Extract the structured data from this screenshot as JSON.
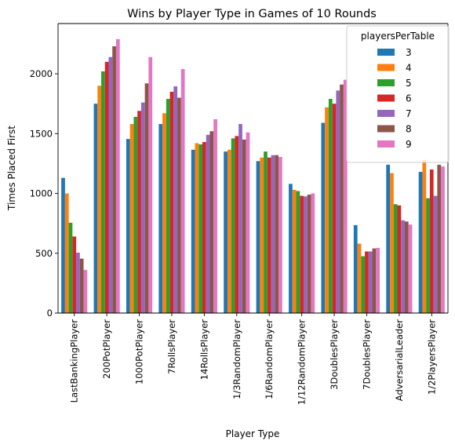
{
  "chart_data": {
    "type": "bar",
    "title": "Wins by Player Type in Games of 10 Rounds",
    "xlabel": "Player Type",
    "ylabel": "Times Placed First",
    "ylim": [
      0,
      2420
    ],
    "yticks": [
      0,
      500,
      1000,
      1500,
      2000
    ],
    "grid": false,
    "legend_title": "playersPerTable",
    "legend_position": "top-right",
    "categories": [
      "LastBankingPlayer",
      "200PotPlayer",
      "1000PotPlayer",
      "7RollsPlayer",
      "14RollsPlayer",
      "1/3RandomPlayer",
      "1/6RandomPlayer",
      "1/12RandomPlayer",
      "3DoublesPlayer",
      "7DoublesPlayer",
      "AdversarialLeader",
      "1/2PlayersPlayer"
    ],
    "series": [
      {
        "name": "3",
        "color": "#1f77b4",
        "values": [
          1130,
          1750,
          1455,
          1580,
          1365,
          1350,
          1270,
          1080,
          1590,
          735,
          1240,
          1180
        ]
      },
      {
        "name": "4",
        "color": "#ff7f0e",
        "values": [
          1000,
          1900,
          1580,
          1670,
          1420,
          1365,
          1300,
          1030,
          1720,
          580,
          1170,
          1280
        ]
      },
      {
        "name": "5",
        "color": "#2ca02c",
        "values": [
          755,
          2020,
          1640,
          1790,
          1410,
          1460,
          1350,
          1020,
          1790,
          475,
          910,
          960
        ]
      },
      {
        "name": "6",
        "color": "#d62728",
        "values": [
          640,
          2100,
          1690,
          1850,
          1430,
          1480,
          1300,
          980,
          1750,
          515,
          900,
          1200
        ]
      },
      {
        "name": "7",
        "color": "#9467bd",
        "values": [
          505,
          2140,
          1760,
          1895,
          1490,
          1580,
          1320,
          975,
          1860,
          515,
          775,
          980
        ]
      },
      {
        "name": "8",
        "color": "#8c564b",
        "values": [
          455,
          2230,
          1920,
          1800,
          1520,
          1450,
          1320,
          990,
          1910,
          540,
          765,
          1240
        ]
      },
      {
        "name": "9",
        "color": "#e377c2",
        "values": [
          360,
          2290,
          2140,
          2040,
          1620,
          1510,
          1305,
          1000,
          1950,
          545,
          740,
          1225
        ]
      }
    ]
  }
}
